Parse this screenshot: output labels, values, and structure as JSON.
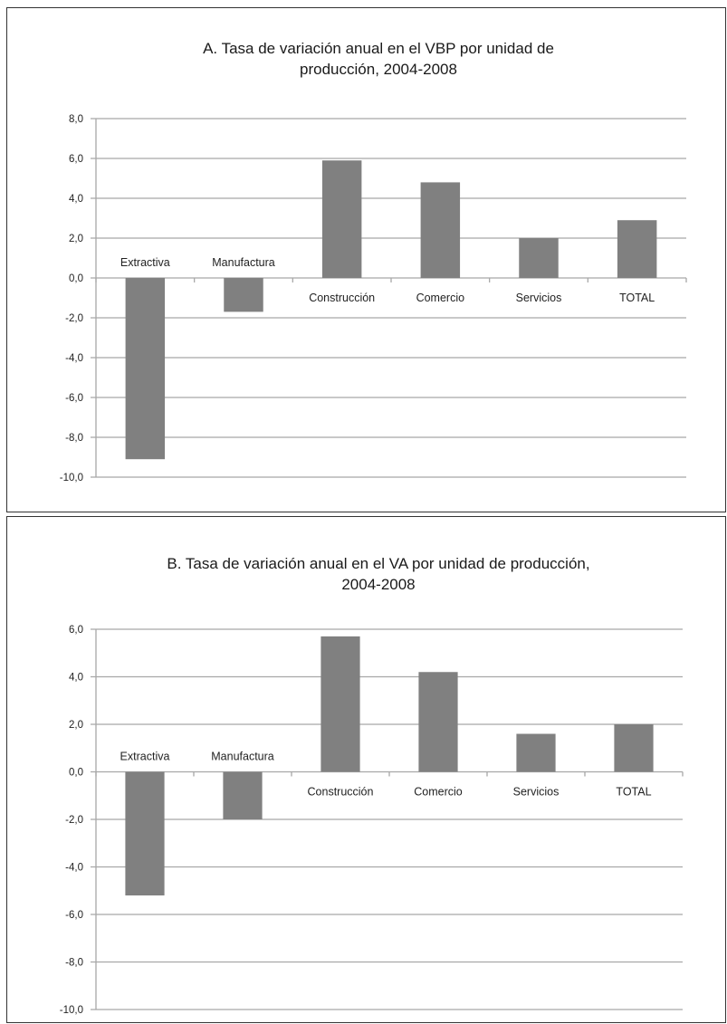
{
  "chart_data": [
    {
      "type": "bar",
      "title_line1": "A. Tasa de variación anual en el VBP por unidad de",
      "title_line2": "producción, 2004-2008",
      "categories": [
        "Extractiva",
        "Manufactura",
        "Construcción",
        "Comercio",
        "Servicios",
        "TOTAL"
      ],
      "values": [
        -9.1,
        -1.7,
        5.9,
        4.8,
        2.0,
        2.9
      ],
      "ylim": [
        -10,
        8
      ],
      "yticks": [
        "8,0",
        "6,0",
        "4,0",
        "2,0",
        "0,0",
        "-2,0",
        "-4,0",
        "-6,0",
        "-8,0",
        "-10,0"
      ],
      "grid": true,
      "bar_color": "#808080",
      "grid_color": "#a8a8a8"
    },
    {
      "type": "bar",
      "title_line1": "B. Tasa de variación anual en el VA por unidad de producción,",
      "title_line2": "2004-2008",
      "categories": [
        "Extractiva",
        "Manufactura",
        "Construcción",
        "Comercio",
        "Servicios",
        "TOTAL"
      ],
      "values": [
        -5.2,
        -2.0,
        5.7,
        4.2,
        1.6,
        2.0
      ],
      "ylim": [
        -10,
        6
      ],
      "yticks": [
        "6,0",
        "4,0",
        "2,0",
        "0,0",
        "-2,0",
        "-4,0",
        "-6,0",
        "-8,0",
        "-10,0"
      ],
      "grid": true,
      "bar_color": "#808080",
      "grid_color": "#a8a8a8"
    }
  ]
}
